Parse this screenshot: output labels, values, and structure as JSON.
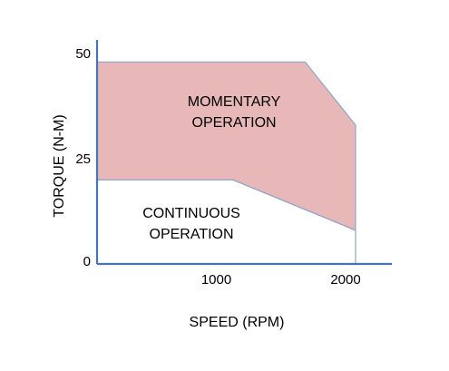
{
  "chart_data": {
    "type": "area",
    "xlabel": "SPEED (RPM)",
    "ylabel": "TORQUE (N-M)",
    "xlim": [
      0,
      2300
    ],
    "ylim": [
      0,
      50
    ],
    "xticks": [
      {
        "value": 1000,
        "label": "1000"
      },
      {
        "value": 2000,
        "label": "2000"
      }
    ],
    "yticks": [
      {
        "value": 0,
        "label": "0"
      },
      {
        "value": 25,
        "label": "25"
      },
      {
        "value": 50,
        "label": "50"
      }
    ],
    "grid": false,
    "series": [
      {
        "name": "MOMENTARY OPERATION",
        "x": [
          0,
          1610,
          2000,
          2000
        ],
        "y": [
          48,
          48,
          33,
          8
        ],
        "lower_x": [
          0,
          1050,
          2000
        ],
        "lower_y": [
          20,
          20,
          8
        ],
        "color": "#e8b8b8",
        "label_lines": [
          "MOMENTARY",
          "OPERATION"
        ],
        "label_pos": [
          1060,
          37.5
        ]
      },
      {
        "name": "CONTINUOUS OPERATION",
        "x": [
          0,
          1050,
          2000
        ],
        "y": [
          20,
          20,
          8
        ],
        "color": "#ffffff",
        "label_lines": [
          "CONTINUOUS",
          "OPERATION"
        ],
        "label_pos": [
          730,
          11
        ]
      }
    ]
  }
}
